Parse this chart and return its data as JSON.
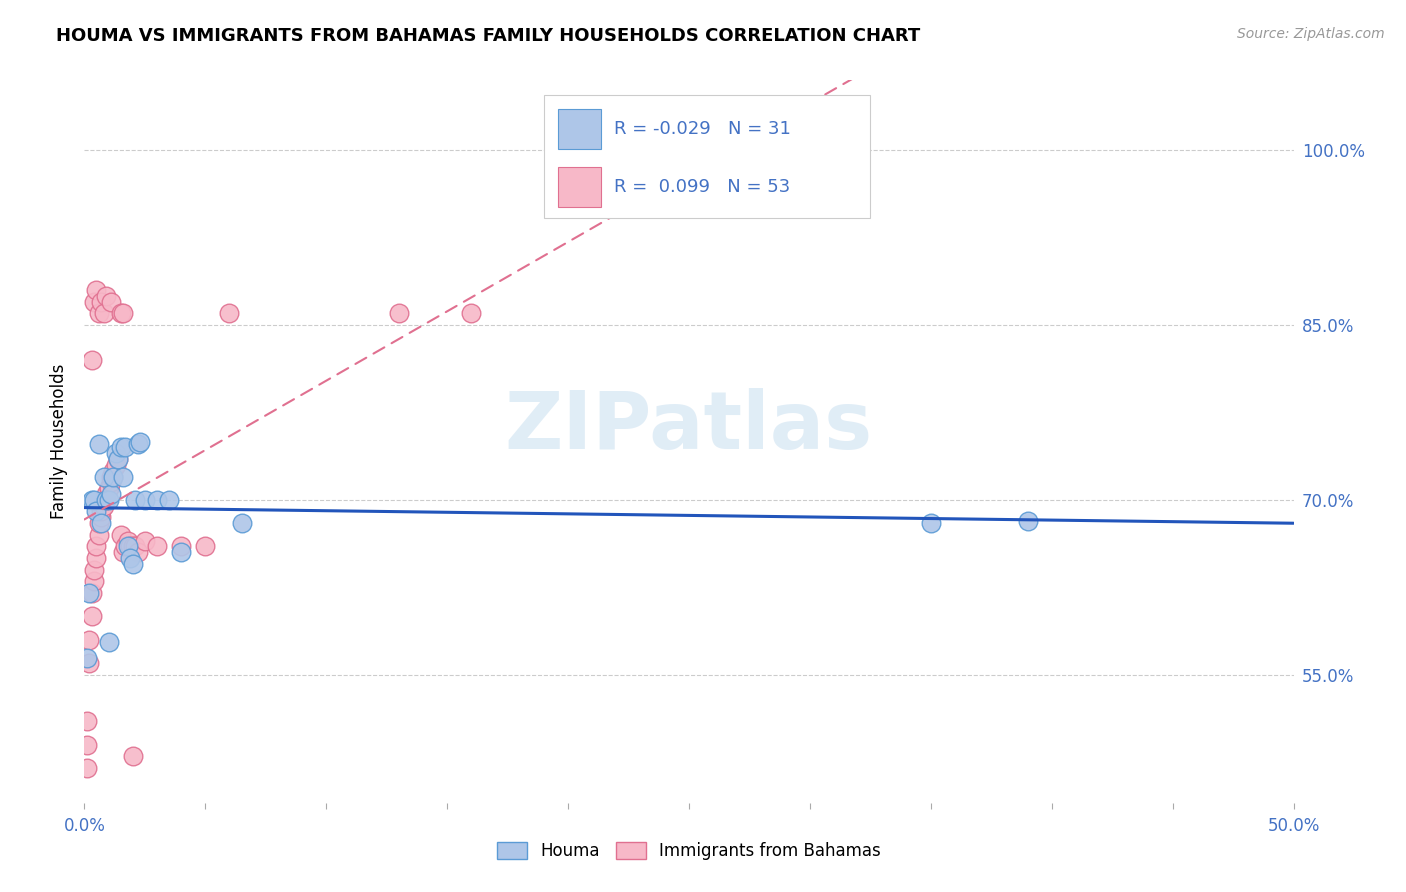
{
  "title": "HOUMA VS IMMIGRANTS FROM BAHAMAS FAMILY HOUSEHOLDS CORRELATION CHART",
  "source": "Source: ZipAtlas.com",
  "ylabel": "Family Households",
  "watermark": "ZIPatlas",
  "houma_color": "#aec6e8",
  "bahamas_color": "#f7b8c8",
  "houma_edge_color": "#5b9bd5",
  "bahamas_edge_color": "#e07090",
  "trend_blue": "#2255bb",
  "trend_pink": "#e07090",
  "xlim": [
    0.0,
    0.5
  ],
  "ylim": [
    0.44,
    1.06
  ],
  "ytick_vals": [
    0.55,
    0.7,
    0.85,
    1.0
  ],
  "ytick_labels": [
    "55.0%",
    "70.0%",
    "85.0%",
    "100.0%"
  ],
  "xtick_vals": [
    0.0,
    0.05,
    0.1,
    0.15,
    0.2,
    0.25,
    0.3,
    0.35,
    0.4,
    0.45,
    0.5
  ],
  "houma_x": [
    0.001,
    0.002,
    0.003,
    0.004,
    0.005,
    0.006,
    0.007,
    0.008,
    0.009,
    0.01,
    0.011,
    0.012,
    0.013,
    0.014,
    0.015,
    0.016,
    0.017,
    0.018,
    0.019,
    0.02,
    0.021,
    0.022,
    0.023,
    0.025,
    0.03,
    0.035,
    0.04,
    0.065,
    0.35,
    0.39,
    0.01
  ],
  "houma_y": [
    0.564,
    0.62,
    0.7,
    0.7,
    0.69,
    0.748,
    0.68,
    0.72,
    0.7,
    0.7,
    0.705,
    0.72,
    0.74,
    0.735,
    0.745,
    0.72,
    0.745,
    0.66,
    0.65,
    0.645,
    0.7,
    0.748,
    0.75,
    0.7,
    0.7,
    0.7,
    0.655,
    0.68,
    0.68,
    0.682,
    0.578
  ],
  "bahamas_x": [
    0.001,
    0.001,
    0.001,
    0.002,
    0.002,
    0.003,
    0.003,
    0.004,
    0.004,
    0.005,
    0.005,
    0.006,
    0.006,
    0.007,
    0.007,
    0.008,
    0.008,
    0.009,
    0.009,
    0.01,
    0.01,
    0.011,
    0.011,
    0.012,
    0.012,
    0.013,
    0.014,
    0.015,
    0.016,
    0.017,
    0.018,
    0.019,
    0.02,
    0.021,
    0.022,
    0.025,
    0.003,
    0.004,
    0.005,
    0.006,
    0.007,
    0.008,
    0.009,
    0.011,
    0.015,
    0.016,
    0.06,
    0.13,
    0.16,
    0.03,
    0.04,
    0.05,
    0.02
  ],
  "bahamas_y": [
    0.47,
    0.49,
    0.51,
    0.56,
    0.58,
    0.6,
    0.62,
    0.63,
    0.64,
    0.65,
    0.66,
    0.67,
    0.68,
    0.685,
    0.69,
    0.695,
    0.7,
    0.7,
    0.705,
    0.71,
    0.71,
    0.715,
    0.72,
    0.72,
    0.725,
    0.73,
    0.735,
    0.67,
    0.655,
    0.66,
    0.665,
    0.66,
    0.66,
    0.66,
    0.655,
    0.665,
    0.82,
    0.87,
    0.88,
    0.86,
    0.87,
    0.86,
    0.875,
    0.87,
    0.86,
    0.86,
    0.86,
    0.86,
    0.86,
    0.66,
    0.66,
    0.66,
    0.48
  ]
}
